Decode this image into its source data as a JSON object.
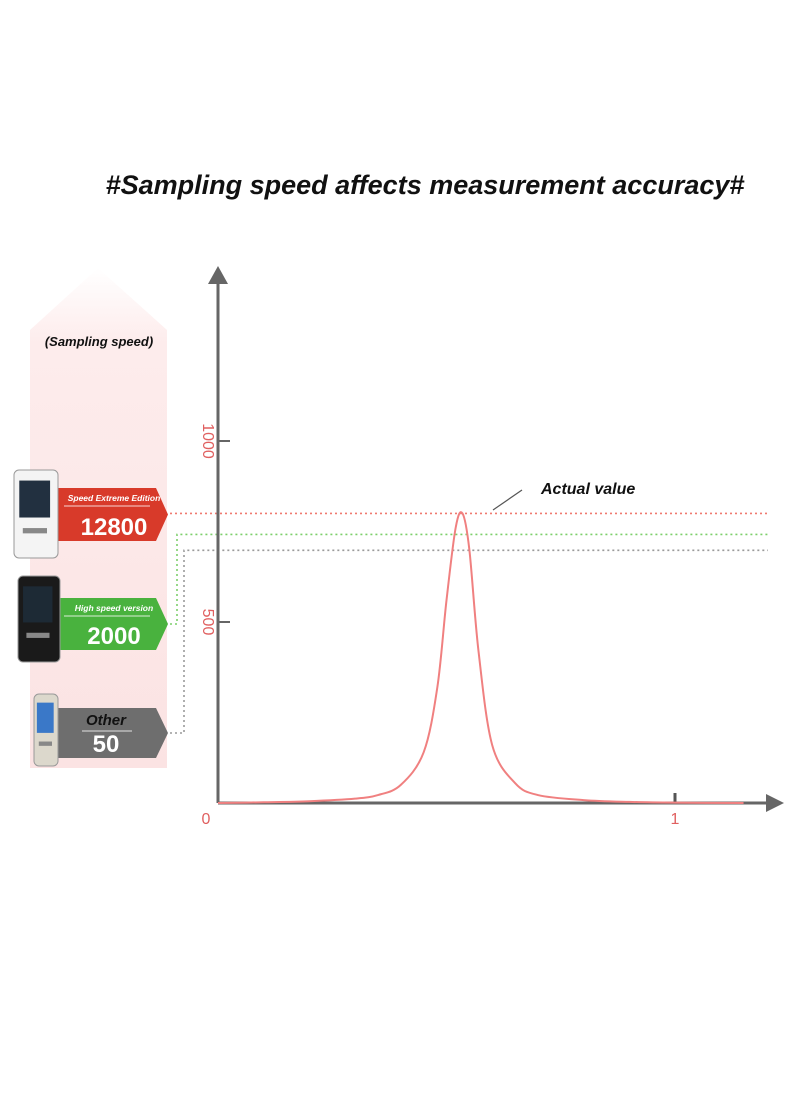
{
  "page": {
    "title": "#Sampling speed affects measurement accuracy#"
  },
  "sampling_speed_label": "(Sampling speed)",
  "devices": [
    {
      "edition": "Speed Extreme Edition",
      "rate": "12800",
      "color": "#d83a2a",
      "line_color": "#f07a70",
      "reading": 800
    },
    {
      "edition": "High speed version",
      "rate": "2000",
      "color": "#49b23e",
      "line_color": "#7ccf6a",
      "reading": 742
    },
    {
      "edition": "Other",
      "rate": "50",
      "color": "#6e6e6e",
      "line_color": "#9a9a9a",
      "reading": 698
    }
  ],
  "annotation": "Actual value",
  "chart_data": {
    "type": "line",
    "y_ticks": [
      "1000",
      "500"
    ],
    "x_ticks": [
      "0",
      "1"
    ],
    "ylim": [
      0,
      1000
    ],
    "xlim": [
      0,
      1
    ],
    "series": [
      {
        "color": "#f08080",
        "points": [
          [
            0,
            0
          ],
          [
            0.1,
            2
          ],
          [
            0.2,
            5
          ],
          [
            0.3,
            12
          ],
          [
            0.35,
            22
          ],
          [
            0.4,
            50
          ],
          [
            0.45,
            140
          ],
          [
            0.48,
            320
          ],
          [
            0.5,
            560
          ],
          [
            0.52,
            760
          ],
          [
            0.535,
            800
          ],
          [
            0.55,
            700
          ],
          [
            0.57,
            420
          ],
          [
            0.6,
            160
          ],
          [
            0.65,
            55
          ],
          [
            0.7,
            22
          ],
          [
            0.8,
            8
          ],
          [
            0.9,
            3
          ],
          [
            1.0,
            1
          ],
          [
            1.15,
            0
          ]
        ]
      }
    ]
  }
}
